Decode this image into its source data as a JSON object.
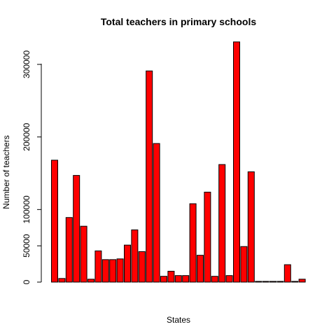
{
  "chart_data": {
    "type": "bar",
    "title": "Total teachers in primary schools",
    "xlabel": "States",
    "ylabel": "Number of teachers",
    "ylim": [
      0,
      330000
    ],
    "yticks": [
      0,
      50000,
      100000,
      200000,
      300000
    ],
    "ytick_labels": [
      "0",
      "50000",
      "100000",
      "200000",
      "300000"
    ],
    "bar_color": "#ff0000",
    "values": [
      168000,
      5000,
      89000,
      147000,
      77000,
      4000,
      43000,
      31000,
      31000,
      32000,
      51000,
      72000,
      42000,
      291000,
      191000,
      8000,
      15000,
      9000,
      9000,
      108000,
      37000,
      124000,
      8000,
      162000,
      9000,
      331000,
      49000,
      152000,
      1000,
      1000,
      1000,
      1000,
      24000,
      1000,
      4000
    ]
  }
}
